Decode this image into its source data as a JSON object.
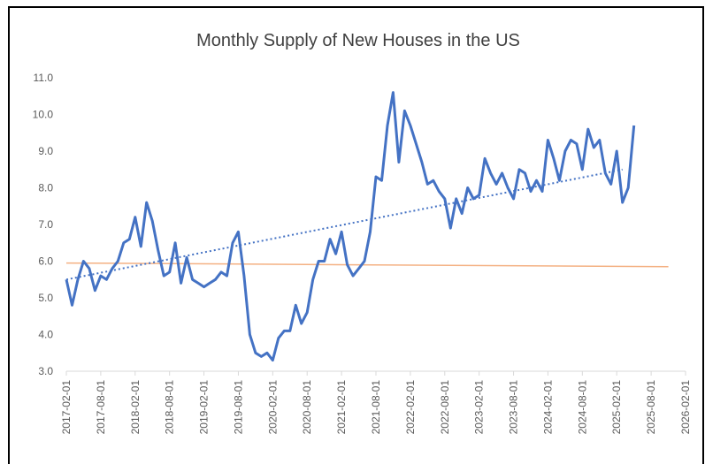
{
  "chart_data": {
    "type": "line",
    "title": "Monthly Supply of New Houses in the US",
    "xlim": [
      "2017-02-01",
      "2026-02-01"
    ],
    "xticks": [
      "2017-02-01",
      "2017-08-01",
      "2018-02-01",
      "2018-08-01",
      "2019-02-01",
      "2019-08-01",
      "2020-02-01",
      "2020-08-01",
      "2021-02-01",
      "2021-08-01",
      "2022-02-01",
      "2022-08-01",
      "2023-02-01",
      "2023-08-01",
      "2024-02-01",
      "2024-08-01",
      "2025-02-01",
      "2025-08-01",
      "2026-02-01"
    ],
    "ylim": [
      3,
      11
    ],
    "yticks": [
      {
        "value": 3,
        "label": "3.0"
      },
      {
        "value": 4,
        "label": "4.0"
      },
      {
        "value": 5,
        "label": "5.0"
      },
      {
        "value": 6,
        "label": "6.0"
      },
      {
        "value": 7,
        "label": "7.0"
      },
      {
        "value": 8,
        "label": "8.0"
      },
      {
        "value": 9,
        "label": "9.0"
      },
      {
        "value": 10,
        "label": "10.0"
      },
      {
        "value": 11,
        "label": "11.0"
      }
    ],
    "grid": false,
    "series": [
      {
        "color": "#4472c4",
        "style": "solid",
        "x": [
          "2017-02-01",
          "2017-03-01",
          "2017-04-01",
          "2017-05-01",
          "2017-06-01",
          "2017-07-01",
          "2017-08-01",
          "2017-09-01",
          "2017-10-01",
          "2017-11-01",
          "2017-12-01",
          "2018-01-01",
          "2018-02-01",
          "2018-03-01",
          "2018-04-01",
          "2018-05-01",
          "2018-06-01",
          "2018-07-01",
          "2018-08-01",
          "2018-09-01",
          "2018-10-01",
          "2018-11-01",
          "2018-12-01",
          "2019-01-01",
          "2019-02-01",
          "2019-03-01",
          "2019-04-01",
          "2019-05-01",
          "2019-06-01",
          "2019-07-01",
          "2019-08-01",
          "2019-09-01",
          "2019-10-01",
          "2019-11-01",
          "2019-12-01",
          "2020-01-01",
          "2020-02-01",
          "2020-03-01",
          "2020-04-01",
          "2020-05-01",
          "2020-06-01",
          "2020-07-01",
          "2020-08-01",
          "2020-09-01",
          "2020-10-01",
          "2020-11-01",
          "2020-12-01",
          "2021-01-01",
          "2021-02-01",
          "2021-03-01",
          "2021-04-01",
          "2021-05-01",
          "2021-06-01",
          "2021-07-01",
          "2021-08-01",
          "2021-09-01",
          "2021-10-01",
          "2021-11-01",
          "2021-12-01",
          "2022-01-01",
          "2022-02-01",
          "2022-03-01",
          "2022-04-01",
          "2022-05-01",
          "2022-06-01",
          "2022-07-01",
          "2022-08-01",
          "2022-09-01",
          "2022-10-01",
          "2022-11-01",
          "2022-12-01",
          "2023-01-01",
          "2023-02-01",
          "2023-03-01",
          "2023-04-01",
          "2023-05-01",
          "2023-06-01",
          "2023-07-01",
          "2023-08-01",
          "2023-09-01",
          "2023-10-01",
          "2023-11-01",
          "2023-12-01",
          "2024-01-01",
          "2024-02-01",
          "2024-03-01",
          "2024-04-01",
          "2024-05-01",
          "2024-06-01",
          "2024-07-01",
          "2024-08-01",
          "2024-09-01",
          "2024-10-01",
          "2024-11-01",
          "2024-12-01",
          "2025-01-01",
          "2025-02-01",
          "2025-03-01",
          "2025-04-01",
          "2025-05-01"
        ],
        "values": [
          5.5,
          4.8,
          5.5,
          6.0,
          5.8,
          5.2,
          5.6,
          5.5,
          5.8,
          6.0,
          6.5,
          6.6,
          7.2,
          6.4,
          7.6,
          7.1,
          6.3,
          5.6,
          5.7,
          6.5,
          5.4,
          6.1,
          5.5,
          5.4,
          5.3,
          5.4,
          5.5,
          5.7,
          5.6,
          6.5,
          6.8,
          5.6,
          4.0,
          3.5,
          3.4,
          3.5,
          3.3,
          3.9,
          4.1,
          4.1,
          4.8,
          4.3,
          4.6,
          5.5,
          6.0,
          6.0,
          6.6,
          6.2,
          6.8,
          5.9,
          5.6,
          5.8,
          6.0,
          6.8,
          8.3,
          8.2,
          9.7,
          10.6,
          8.7,
          10.1,
          9.7,
          9.2,
          8.7,
          8.1,
          8.2,
          7.9,
          7.7,
          6.9,
          7.7,
          7.3,
          8.0,
          7.7,
          7.8,
          8.8,
          8.4,
          8.1,
          8.4,
          8.0,
          7.7,
          8.5,
          8.4,
          7.9,
          8.2,
          7.9,
          9.3,
          8.8,
          8.2,
          9.0,
          9.3,
          9.2,
          8.5,
          9.6,
          9.1,
          9.3,
          8.4,
          8.1,
          9.0,
          7.6,
          8.0,
          9.7
        ]
      },
      {
        "color": "#4472c4",
        "style": "dotted",
        "x": [
          "2017-02-01",
          "2025-03-01"
        ],
        "values": [
          5.5,
          8.5
        ]
      },
      {
        "color": "#f4b183",
        "style": "solid",
        "x": [
          "2017-02-01",
          "2025-11-01"
        ],
        "values": [
          5.95,
          5.85
        ]
      }
    ]
  }
}
